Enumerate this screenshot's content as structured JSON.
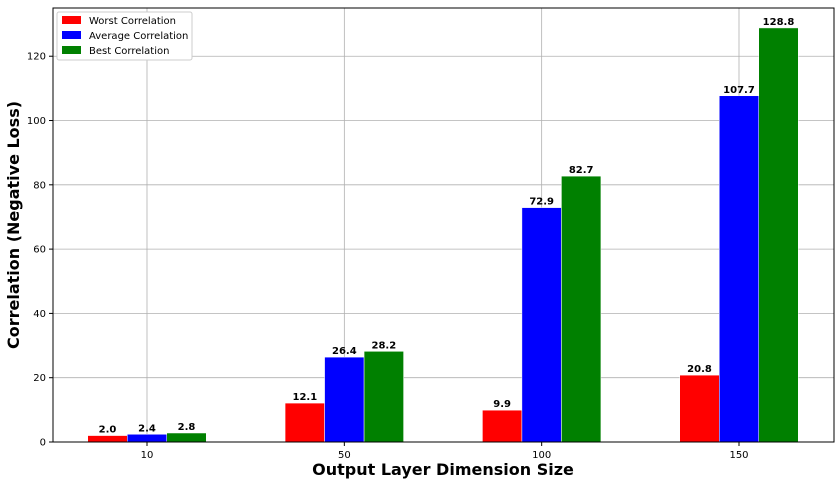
{
  "chart_data": {
    "type": "bar",
    "title": "",
    "xlabel": "Output Layer Dimension Size",
    "ylabel": "Correlation (Negative Loss)",
    "categories": [
      "10",
      "50",
      "100",
      "150"
    ],
    "series": [
      {
        "name": "Worst Correlation",
        "color": "#ff0000",
        "values": [
          2.0,
          12.1,
          9.9,
          20.8
        ]
      },
      {
        "name": "Average Correlation",
        "color": "#0000ff",
        "values": [
          2.4,
          26.4,
          72.9,
          107.7
        ]
      },
      {
        "name": "Best Correlation",
        "color": "#008000",
        "values": [
          2.8,
          28.2,
          82.7,
          128.8
        ]
      }
    ],
    "ylim": [
      0,
      135
    ],
    "yticks": [
      0,
      20,
      40,
      60,
      80,
      100,
      120
    ],
    "grid": true,
    "legend_position": "top-left",
    "data_labels": true
  }
}
